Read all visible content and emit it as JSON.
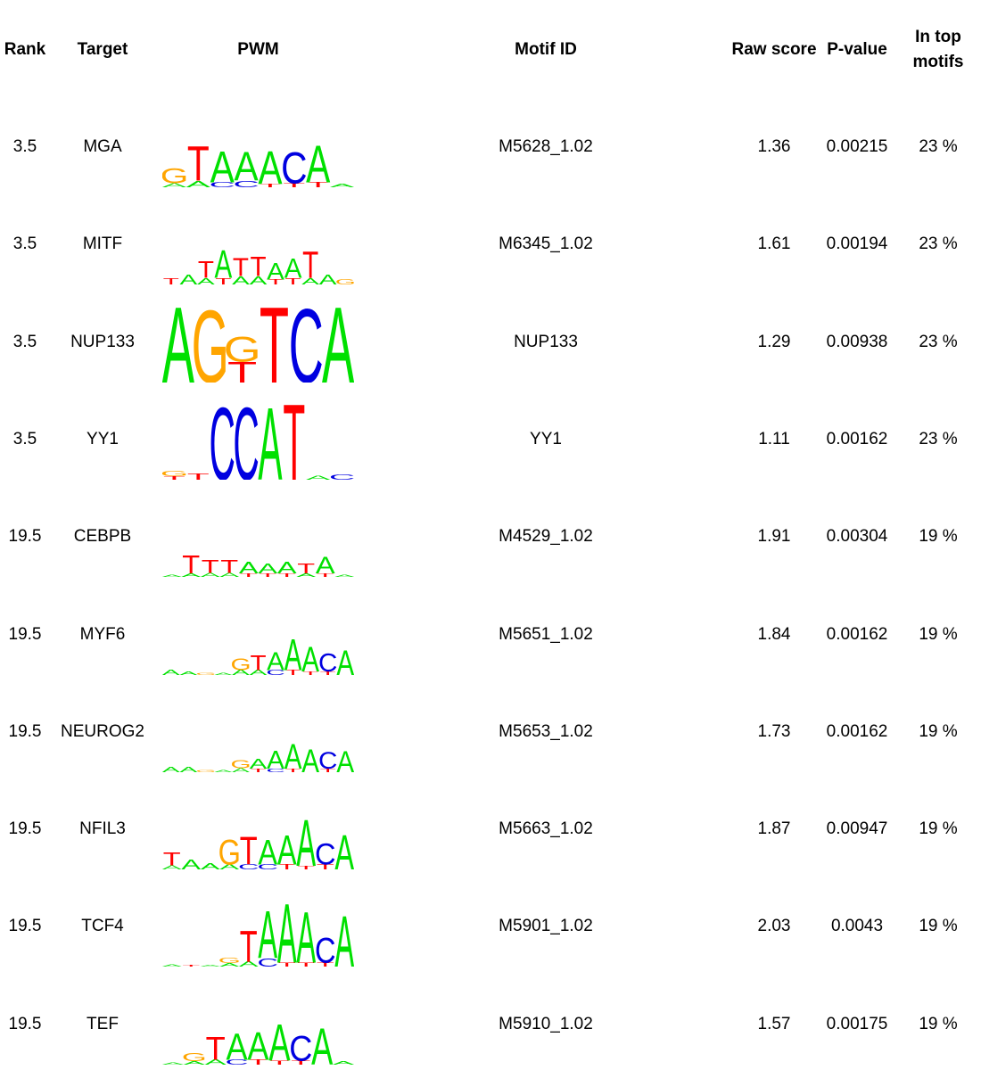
{
  "colors": {
    "A": "#00e000",
    "C": "#0000e0",
    "G": "#ffa500",
    "T": "#ff0000"
  },
  "headers": {
    "rank": "Rank",
    "target": "Target",
    "pwm": "PWM",
    "motif_id": "Motif ID",
    "raw_score": "Raw score",
    "pvalue": "P-value",
    "top_line1": "In top",
    "top_line2": "motifs"
  },
  "chart_data": {
    "type": "table",
    "rows": [
      {
        "rank": "3.5",
        "target": "MGA",
        "motif_id": "M5628_1.02",
        "raw_score": "1.36",
        "pvalue": "0.00215",
        "top": "23 %",
        "logo": [
          [
            [
              "G",
              0.18
            ],
            [
              "A",
              0.05
            ]
          ],
          [
            [
              "T",
              0.42
            ],
            [
              "A",
              0.08
            ]
          ],
          [
            [
              "A",
              0.38
            ],
            [
              "C",
              0.06
            ]
          ],
          [
            [
              "A",
              0.35
            ],
            [
              "C",
              0.08
            ]
          ],
          [
            [
              "A",
              0.4
            ],
            [
              "T",
              0.04
            ]
          ],
          [
            [
              "C",
              0.38
            ],
            [
              "T",
              0.05
            ]
          ],
          [
            [
              "A",
              0.45
            ],
            [
              "T",
              0.06
            ]
          ],
          [
            [
              "A",
              0.04
            ]
          ]
        ]
      },
      {
        "rank": "3.5",
        "target": "MITF",
        "motif_id": "M6345_1.02",
        "raw_score": "1.61",
        "pvalue": "0.00194",
        "top": "23 %",
        "logo": [
          [
            [
              "T",
              0.08
            ]
          ],
          [
            [
              "A",
              0.12
            ]
          ],
          [
            [
              "T",
              0.2
            ],
            [
              "A",
              0.08
            ]
          ],
          [
            [
              "A",
              0.34
            ],
            [
              "T",
              0.08
            ]
          ],
          [
            [
              "T",
              0.22
            ],
            [
              "A",
              0.1
            ]
          ],
          [
            [
              "T",
              0.24
            ],
            [
              "A",
              0.1
            ]
          ],
          [
            [
              "A",
              0.2
            ],
            [
              "T",
              0.06
            ]
          ],
          [
            [
              "A",
              0.24
            ],
            [
              "T",
              0.08
            ]
          ],
          [
            [
              "T",
              0.32
            ],
            [
              "A",
              0.08
            ]
          ],
          [
            [
              "A",
              0.12
            ]
          ],
          [
            [
              "G",
              0.06
            ]
          ]
        ]
      },
      {
        "rank": "3.5",
        "target": "NUP133",
        "motif_id": "NUP133",
        "raw_score": "1.29",
        "pvalue": "0.00938",
        "top": "23 %",
        "logo": [
          [
            [
              "A",
              0.92
            ]
          ],
          [
            [
              "G",
              0.88
            ]
          ],
          [
            [
              "G",
              0.3
            ],
            [
              "T",
              0.25
            ]
          ],
          [
            [
              "T",
              0.92
            ]
          ],
          [
            [
              "C",
              0.9
            ]
          ],
          [
            [
              "A",
              0.92
            ]
          ]
        ]
      },
      {
        "rank": "3.5",
        "target": "YY1",
        "motif_id": "YY1",
        "raw_score": "1.11",
        "pvalue": "0.00162",
        "top": "23 %",
        "logo": [
          [
            [
              "G",
              0.06
            ],
            [
              "T",
              0.04
            ]
          ],
          [
            [
              "T",
              0.08
            ]
          ],
          [
            [
              "C",
              0.88
            ]
          ],
          [
            [
              "C",
              0.88
            ]
          ],
          [
            [
              "A",
              0.88
            ]
          ],
          [
            [
              "T",
              0.92
            ]
          ],
          [
            [
              "A",
              0.05
            ]
          ],
          [
            [
              "C",
              0.06
            ]
          ]
        ]
      },
      {
        "rank": "19.5",
        "target": "CEBPB",
        "motif_id": "M4529_1.02",
        "raw_score": "1.91",
        "pvalue": "0.00304",
        "top": "19 %",
        "logo": [
          [
            [
              "A",
              0.03
            ]
          ],
          [
            [
              "T",
              0.22
            ],
            [
              "A",
              0.04
            ]
          ],
          [
            [
              "T",
              0.16
            ],
            [
              "A",
              0.05
            ]
          ],
          [
            [
              "T",
              0.16
            ],
            [
              "A",
              0.05
            ]
          ],
          [
            [
              "A",
              0.14
            ],
            [
              "T",
              0.04
            ]
          ],
          [
            [
              "A",
              0.12
            ],
            [
              "T",
              0.04
            ]
          ],
          [
            [
              "A",
              0.14
            ],
            [
              "T",
              0.04
            ]
          ],
          [
            [
              "T",
              0.12
            ],
            [
              "A",
              0.04
            ]
          ],
          [
            [
              "A",
              0.2
            ],
            [
              "T",
              0.04
            ]
          ],
          [
            [
              "A",
              0.03
            ]
          ]
        ]
      },
      {
        "rank": "19.5",
        "target": "MYF6",
        "motif_id": "M5651_1.02",
        "raw_score": "1.84",
        "pvalue": "0.00162",
        "top": "19 %",
        "logo": [
          [
            [
              "A",
              0.06
            ]
          ],
          [
            [
              "A",
              0.04
            ]
          ],
          [
            [
              "G",
              0.03
            ]
          ],
          [
            [
              "A",
              0.03
            ]
          ],
          [
            [
              "G",
              0.14
            ],
            [
              "A",
              0.06
            ]
          ],
          [
            [
              "T",
              0.18
            ],
            [
              "A",
              0.06
            ]
          ],
          [
            [
              "A",
              0.22
            ],
            [
              "C",
              0.06
            ]
          ],
          [
            [
              "A",
              0.38
            ],
            [
              "T",
              0.06
            ]
          ],
          [
            [
              "A",
              0.3
            ],
            [
              "T",
              0.04
            ]
          ],
          [
            [
              "C",
              0.22
            ],
            [
              "T",
              0.04
            ]
          ],
          [
            [
              "A",
              0.3
            ]
          ]
        ]
      },
      {
        "rank": "19.5",
        "target": "NEUROG2",
        "motif_id": "M5653_1.02",
        "raw_score": "1.73",
        "pvalue": "0.00162",
        "top": "19 %",
        "logo": [
          [
            [
              "A",
              0.06
            ]
          ],
          [
            [
              "A",
              0.06
            ]
          ],
          [
            [
              "G",
              0.03
            ]
          ],
          [
            [
              "A",
              0.03
            ]
          ],
          [
            [
              "G",
              0.1
            ],
            [
              "A",
              0.05
            ]
          ],
          [
            [
              "A",
              0.12
            ],
            [
              "T",
              0.04
            ]
          ],
          [
            [
              "A",
              0.22
            ],
            [
              "C",
              0.04
            ]
          ],
          [
            [
              "A",
              0.3
            ],
            [
              "T",
              0.04
            ]
          ],
          [
            [
              "A",
              0.28
            ]
          ],
          [
            [
              "C",
              0.2
            ],
            [
              "T",
              0.04
            ]
          ],
          [
            [
              "A",
              0.26
            ]
          ]
        ]
      },
      {
        "rank": "19.5",
        "target": "NFIL3",
        "motif_id": "M5663_1.02",
        "raw_score": "1.87",
        "pvalue": "0.00947",
        "top": "19 %",
        "logo": [
          [
            [
              "T",
              0.16
            ],
            [
              "A",
              0.05
            ]
          ],
          [
            [
              "A",
              0.12
            ]
          ],
          [
            [
              "A",
              0.08
            ]
          ],
          [
            [
              "G",
              0.3
            ],
            [
              "A",
              0.06
            ]
          ],
          [
            [
              "T",
              0.34
            ],
            [
              "C",
              0.06
            ]
          ],
          [
            [
              "A",
              0.3
            ],
            [
              "C",
              0.06
            ]
          ],
          [
            [
              "A",
              0.36
            ],
            [
              "T",
              0.06
            ]
          ],
          [
            [
              "A",
              0.56
            ],
            [
              "T",
              0.04
            ]
          ],
          [
            [
              "C",
              0.26
            ],
            [
              "T",
              0.06
            ]
          ],
          [
            [
              "A",
              0.42
            ]
          ]
        ]
      },
      {
        "rank": "19.5",
        "target": "TCF4",
        "motif_id": "M5901_1.02",
        "raw_score": "2.03",
        "pvalue": "0.0043",
        "top": "19 %",
        "logo": [
          [
            [
              "A",
              0.03
            ]
          ],
          [
            [
              "T",
              0.02
            ]
          ],
          [
            [
              "A",
              0.02
            ]
          ],
          [
            [
              "G",
              0.06
            ],
            [
              "A",
              0.04
            ]
          ],
          [
            [
              "T",
              0.38
            ],
            [
              "A",
              0.06
            ]
          ],
          [
            [
              "A",
              0.58
            ],
            [
              "C",
              0.1
            ]
          ],
          [
            [
              "A",
              0.72
            ],
            [
              "T",
              0.05
            ]
          ],
          [
            [
              "A",
              0.62
            ],
            [
              "T",
              0.05
            ]
          ],
          [
            [
              "C",
              0.3
            ],
            [
              "T",
              0.05
            ]
          ],
          [
            [
              "A",
              0.62
            ]
          ]
        ]
      },
      {
        "rank": "19.5",
        "target": "TEF",
        "motif_id": "M5910_1.02",
        "raw_score": "1.57",
        "pvalue": "0.00175",
        "top": "19 %",
        "logo": [
          [
            [
              "A",
              0.03
            ]
          ],
          [
            [
              "G",
              0.1
            ],
            [
              "A",
              0.04
            ]
          ],
          [
            [
              "T",
              0.28
            ],
            [
              "A",
              0.06
            ]
          ],
          [
            [
              "A",
              0.32
            ],
            [
              "C",
              0.06
            ]
          ],
          [
            [
              "A",
              0.34
            ],
            [
              "T",
              0.06
            ]
          ],
          [
            [
              "A",
              0.44
            ],
            [
              "T",
              0.05
            ]
          ],
          [
            [
              "C",
              0.3
            ],
            [
              "T",
              0.05
            ]
          ],
          [
            [
              "A",
              0.44
            ]
          ],
          [
            [
              "A",
              0.04
            ]
          ]
        ]
      }
    ]
  }
}
